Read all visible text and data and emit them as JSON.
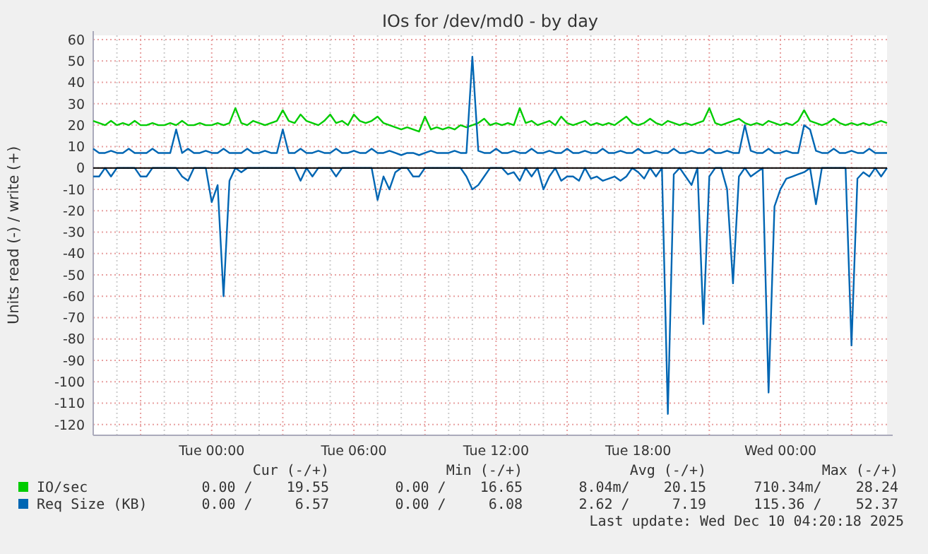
{
  "chart_data": {
    "type": "line",
    "title": "IOs for /dev/md0 - by day",
    "ylabel": "Units read (-) / write (+)",
    "x": [
      "2025-12-08T19:00",
      "2025-12-08T19:15",
      "2025-12-08T19:30",
      "2025-12-08T19:45",
      "2025-12-08T20:00",
      "2025-12-08T20:15",
      "2025-12-08T20:30",
      "2025-12-08T20:45",
      "2025-12-08T21:00",
      "2025-12-08T21:15",
      "2025-12-08T21:30",
      "2025-12-08T21:45",
      "2025-12-08T22:00",
      "2025-12-08T22:15",
      "2025-12-08T22:30",
      "2025-12-08T22:45",
      "2025-12-08T23:00",
      "2025-12-08T23:15",
      "2025-12-08T23:30",
      "2025-12-08T23:45",
      "2025-12-09T00:00",
      "2025-12-09T00:15",
      "2025-12-09T00:30",
      "2025-12-09T00:45",
      "2025-12-09T01:00",
      "2025-12-09T01:15",
      "2025-12-09T01:30",
      "2025-12-09T01:45",
      "2025-12-09T02:00",
      "2025-12-09T02:15",
      "2025-12-09T02:30",
      "2025-12-09T02:45",
      "2025-12-09T03:00",
      "2025-12-09T03:15",
      "2025-12-09T03:30",
      "2025-12-09T03:45",
      "2025-12-09T04:00",
      "2025-12-09T04:15",
      "2025-12-09T04:30",
      "2025-12-09T04:45",
      "2025-12-09T05:00",
      "2025-12-09T05:15",
      "2025-12-09T05:30",
      "2025-12-09T05:45",
      "2025-12-09T06:00",
      "2025-12-09T06:15",
      "2025-12-09T06:30",
      "2025-12-09T06:45",
      "2025-12-09T07:00",
      "2025-12-09T07:15",
      "2025-12-09T07:30",
      "2025-12-09T07:45",
      "2025-12-09T08:00",
      "2025-12-09T08:15",
      "2025-12-09T08:30",
      "2025-12-09T08:45",
      "2025-12-09T09:00",
      "2025-12-09T09:15",
      "2025-12-09T09:30",
      "2025-12-09T09:45",
      "2025-12-09T10:00",
      "2025-12-09T10:15",
      "2025-12-09T10:30",
      "2025-12-09T10:45",
      "2025-12-09T11:00",
      "2025-12-09T11:15",
      "2025-12-09T11:30",
      "2025-12-09T11:45",
      "2025-12-09T12:00",
      "2025-12-09T12:15",
      "2025-12-09T12:30",
      "2025-12-09T12:45",
      "2025-12-09T13:00",
      "2025-12-09T13:15",
      "2025-12-09T13:30",
      "2025-12-09T13:45",
      "2025-12-09T14:00",
      "2025-12-09T14:15",
      "2025-12-09T14:30",
      "2025-12-09T14:45",
      "2025-12-09T15:00",
      "2025-12-09T15:15",
      "2025-12-09T15:30",
      "2025-12-09T15:45",
      "2025-12-09T16:00",
      "2025-12-09T16:15",
      "2025-12-09T16:30",
      "2025-12-09T16:45",
      "2025-12-09T17:00",
      "2025-12-09T17:15",
      "2025-12-09T17:30",
      "2025-12-09T17:45",
      "2025-12-09T18:00",
      "2025-12-09T18:15",
      "2025-12-09T18:30",
      "2025-12-09T18:45",
      "2025-12-09T19:00",
      "2025-12-09T19:15",
      "2025-12-09T19:30",
      "2025-12-09T19:45",
      "2025-12-09T20:00",
      "2025-12-09T20:15",
      "2025-12-09T20:30",
      "2025-12-09T20:45",
      "2025-12-09T21:00",
      "2025-12-09T21:15",
      "2025-12-09T21:30",
      "2025-12-09T21:45",
      "2025-12-09T22:00",
      "2025-12-09T22:15",
      "2025-12-09T22:30",
      "2025-12-09T22:45",
      "2025-12-09T23:00",
      "2025-12-09T23:15",
      "2025-12-09T23:30",
      "2025-12-09T23:45",
      "2025-12-10T00:00",
      "2025-12-10T00:15",
      "2025-12-10T00:30",
      "2025-12-10T00:45",
      "2025-12-10T01:00",
      "2025-12-10T01:15",
      "2025-12-10T01:30",
      "2025-12-10T01:45",
      "2025-12-10T02:00",
      "2025-12-10T02:15",
      "2025-12-10T02:30",
      "2025-12-10T02:45",
      "2025-12-10T03:00",
      "2025-12-10T03:15",
      "2025-12-10T03:30",
      "2025-12-10T03:45",
      "2025-12-10T04:00",
      "2025-12-10T04:15",
      "2025-12-10T04:30"
    ],
    "series": [
      {
        "name": "IO/sec",
        "color": "#00cc00",
        "values": [
          22,
          21,
          20,
          22,
          20,
          21,
          20,
          22,
          20,
          20,
          21,
          20,
          20,
          21,
          20,
          22,
          20,
          20,
          21,
          20,
          20,
          21,
          20,
          21,
          28,
          21,
          20,
          22,
          21,
          20,
          21,
          22,
          27,
          22,
          21,
          25,
          22,
          21,
          20,
          22,
          25,
          21,
          22,
          20,
          25,
          22,
          21,
          22,
          24,
          21,
          20,
          19,
          18,
          19,
          18,
          17,
          24,
          18,
          19,
          18,
          19,
          18,
          20,
          19,
          20,
          21,
          23,
          20,
          21,
          20,
          21,
          20,
          28,
          21,
          22,
          20,
          21,
          22,
          20,
          24,
          21,
          20,
          21,
          22,
          20,
          21,
          20,
          21,
          20,
          22,
          24,
          21,
          20,
          21,
          23,
          21,
          20,
          22,
          21,
          20,
          21,
          20,
          21,
          22,
          28,
          21,
          20,
          21,
          22,
          23,
          21,
          20,
          21,
          20,
          22,
          21,
          20,
          21,
          20,
          22,
          27,
          22,
          21,
          20,
          21,
          23,
          21,
          20,
          21,
          20,
          21,
          20,
          21,
          22,
          21
        ]
      },
      {
        "name": "Req Size (KB)",
        "color": "#0066b3",
        "values": [
          9,
          7,
          7,
          8,
          7,
          7,
          9,
          7,
          7,
          7,
          9,
          7,
          7,
          7,
          18,
          7,
          9,
          7,
          7,
          8,
          7,
          7,
          9,
          7,
          7,
          7,
          9,
          7,
          7,
          8,
          7,
          7,
          18,
          7,
          7,
          9,
          7,
          7,
          8,
          7,
          7,
          9,
          7,
          7,
          8,
          7,
          7,
          9,
          7,
          7,
          8,
          7,
          6,
          7,
          7,
          6,
          7,
          8,
          7,
          7,
          7,
          8,
          7,
          7,
          52,
          8,
          7,
          7,
          9,
          7,
          7,
          8,
          7,
          7,
          9,
          7,
          7,
          8,
          7,
          7,
          9,
          7,
          7,
          8,
          7,
          7,
          9,
          7,
          7,
          8,
          7,
          7,
          9,
          7,
          7,
          8,
          7,
          7,
          9,
          7,
          7,
          8,
          7,
          7,
          9,
          7,
          7,
          8,
          7,
          7,
          20,
          8,
          7,
          7,
          9,
          7,
          7,
          8,
          7,
          7,
          20,
          18,
          8,
          7,
          7,
          9,
          7,
          7,
          8,
          7,
          7,
          9,
          7,
          7,
          7
        ]
      },
      {
        "color": "#0066b3",
        "values": [
          -4,
          -4,
          0,
          -4,
          0,
          0,
          0,
          0,
          -4,
          -4,
          0,
          0,
          0,
          0,
          0,
          -4,
          -6,
          0,
          0,
          0,
          -16,
          -8,
          -60,
          -6,
          0,
          -2,
          0,
          0,
          0,
          0,
          0,
          0,
          0,
          0,
          0,
          -6,
          0,
          -4,
          0,
          0,
          0,
          -4,
          0,
          0,
          0,
          0,
          0,
          0,
          -15,
          -4,
          -10,
          -2,
          0,
          0,
          -4,
          -4,
          0,
          0,
          0,
          0,
          0,
          0,
          0,
          -4,
          -10,
          -8,
          -4,
          0,
          0,
          0,
          -3,
          -2,
          -6,
          0,
          -4,
          0,
          -10,
          -4,
          0,
          -6,
          -4,
          -4,
          -6,
          0,
          -5,
          -4,
          -6,
          -5,
          -4,
          -6,
          -4,
          0,
          -2,
          -5,
          0,
          -4,
          0,
          -115,
          -3,
          0,
          -4,
          -8,
          0,
          -73,
          -4,
          0,
          0,
          -10,
          -54,
          -4,
          0,
          -4,
          -2,
          0,
          -105,
          -18,
          -10,
          -5,
          -4,
          -3,
          -2,
          0,
          -17,
          0,
          0,
          0,
          0,
          0,
          -83,
          -5,
          -2,
          -4,
          0,
          -4,
          0
        ]
      }
    ],
    "xlim": [
      "2025-12-08T19:00",
      "2025-12-10T04:30"
    ],
    "xticks": [
      {
        "value": "2025-12-08T20:00",
        "label": null
      },
      {
        "value": "2025-12-08T21:00",
        "label": null
      },
      {
        "value": "2025-12-08T22:00",
        "label": null
      },
      {
        "value": "2025-12-08T23:00",
        "label": null
      },
      {
        "value": "2025-12-09T00:00",
        "label": "Tue 00:00"
      },
      {
        "value": "2025-12-09T01:00",
        "label": null
      },
      {
        "value": "2025-12-09T02:00",
        "label": null
      },
      {
        "value": "2025-12-09T03:00",
        "label": null
      },
      {
        "value": "2025-12-09T04:00",
        "label": null
      },
      {
        "value": "2025-12-09T05:00",
        "label": null
      },
      {
        "value": "2025-12-09T06:00",
        "label": "Tue 06:00"
      },
      {
        "value": "2025-12-09T07:00",
        "label": null
      },
      {
        "value": "2025-12-09T08:00",
        "label": null
      },
      {
        "value": "2025-12-09T09:00",
        "label": null
      },
      {
        "value": "2025-12-09T10:00",
        "label": null
      },
      {
        "value": "2025-12-09T11:00",
        "label": null
      },
      {
        "value": "2025-12-09T12:00",
        "label": "Tue 12:00"
      },
      {
        "value": "2025-12-09T13:00",
        "label": null
      },
      {
        "value": "2025-12-09T14:00",
        "label": null
      },
      {
        "value": "2025-12-09T15:00",
        "label": null
      },
      {
        "value": "2025-12-09T16:00",
        "label": null
      },
      {
        "value": "2025-12-09T17:00",
        "label": null
      },
      {
        "value": "2025-12-09T18:00",
        "label": "Tue 18:00"
      },
      {
        "value": "2025-12-09T19:00",
        "label": null
      },
      {
        "value": "2025-12-09T20:00",
        "label": null
      },
      {
        "value": "2025-12-09T21:00",
        "label": null
      },
      {
        "value": "2025-12-09T22:00",
        "label": null
      },
      {
        "value": "2025-12-09T23:00",
        "label": null
      },
      {
        "value": "2025-12-10T00:00",
        "label": "Wed 00:00"
      },
      {
        "value": "2025-12-10T01:00",
        "label": null
      },
      {
        "value": "2025-12-10T02:00",
        "label": null
      },
      {
        "value": "2025-12-10T03:00",
        "label": null
      },
      {
        "value": "2025-12-10T04:00",
        "label": null
      }
    ],
    "ylim": [
      -125,
      62
    ],
    "yticks": [
      -120,
      -110,
      -100,
      -90,
      -80,
      -70,
      -60,
      -50,
      -40,
      -30,
      -20,
      -10,
      0,
      10,
      20,
      30,
      40,
      50,
      60
    ],
    "grid": true,
    "legend": "bottom",
    "marker": "none",
    "line_style": "solid",
    "ref_lines": [
      {
        "axis": "y",
        "value": 0,
        "color": "#000000"
      }
    ],
    "annotations": [
      "Cur (-/+)",
      "Min (-/+)",
      "Avg (-/+)",
      "Max (-/+)",
      "0.00 /    19.55",
      "0.00 /    16.65",
      "8.04m/    20.15",
      "710.34m/    28.24",
      "0.00 /     6.57",
      "0.00 /     6.08",
      "2.62 /     7.19",
      "115.36 /    52.37",
      "Last update: Wed Dec 10 04:20:18 2025"
    ]
  }
}
